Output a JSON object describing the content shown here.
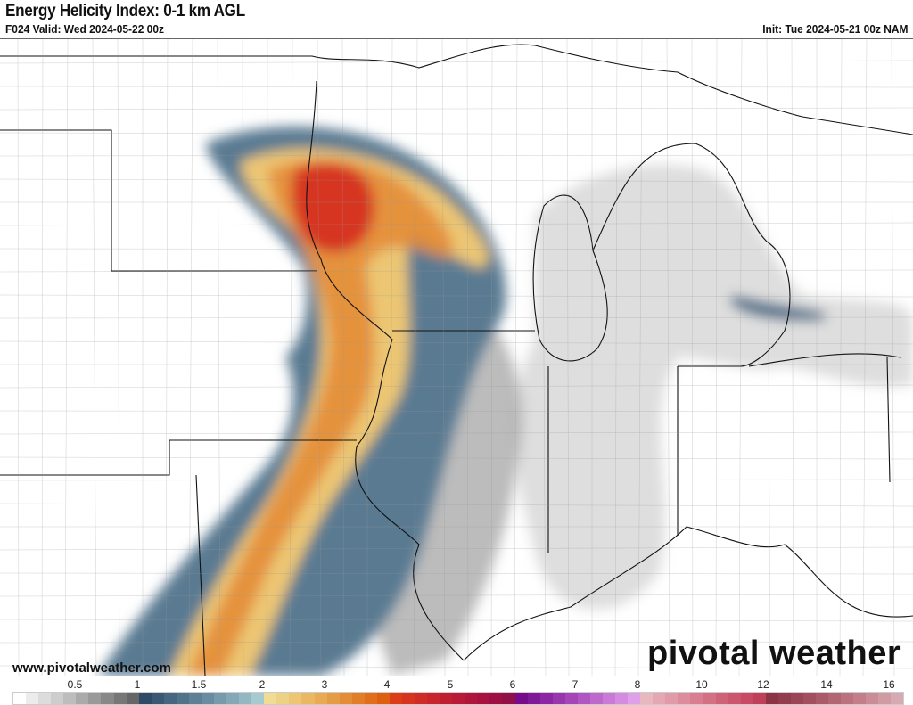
{
  "header": {
    "title": "Energy Helicity Index: 0-1 km AGL",
    "valid": "F024 Valid: Wed 2024-05-22 00z",
    "init": "Init: Tue 2024-05-21 00z NAM"
  },
  "footer": {
    "url": "www.pivotalweather.com",
    "logo": "pivotal weather"
  },
  "colorbar": {
    "labels": [
      "0.5",
      "1",
      "1.5",
      "2",
      "3",
      "4",
      "5",
      "6",
      "7",
      "8",
      "10",
      "12",
      "14",
      "16"
    ],
    "palette": [
      "#ffffff",
      "#ececec",
      "#dcdcdc",
      "#cdcdcd",
      "#bdbdbd",
      "#aaaaaa",
      "#999999",
      "#888888",
      "#777777",
      "#666666",
      "#2f4a66",
      "#3a5873",
      "#46657f",
      "#52728a",
      "#5e7f95",
      "#6b8ca0",
      "#789aab",
      "#86a8b6",
      "#95b7c2",
      "#a7c9d0",
      "#f0dc92",
      "#eed283",
      "#ecc673",
      "#eab863",
      "#e8aa53",
      "#e69b45",
      "#e48c36",
      "#e27d28",
      "#e06e1a",
      "#de600e",
      "#dc3c18",
      "#d63420",
      "#cf2c26",
      "#c8252c",
      "#c01f32",
      "#b81a38",
      "#b0163c",
      "#a81240",
      "#9e1044",
      "#921048",
      "#760c8a",
      "#80189a",
      "#8c26a4",
      "#9836ae",
      "#a446b8",
      "#b056c2",
      "#bc68cc",
      "#c87ad6",
      "#d48ce0",
      "#dea0e8",
      "#e8b8c0",
      "#e4a8b4",
      "#e09aa8",
      "#dc8c9c",
      "#d87e90",
      "#d47084",
      "#d06278",
      "#cc566e",
      "#c84a64",
      "#c0405a",
      "#8a3444",
      "#923c4c",
      "#9a4654",
      "#a2505e",
      "#aa5a68",
      "#b26672",
      "#ba727e",
      "#c27e8a",
      "#ca8c96",
      "#d09ca4",
      "#d6aab2"
    ]
  }
}
